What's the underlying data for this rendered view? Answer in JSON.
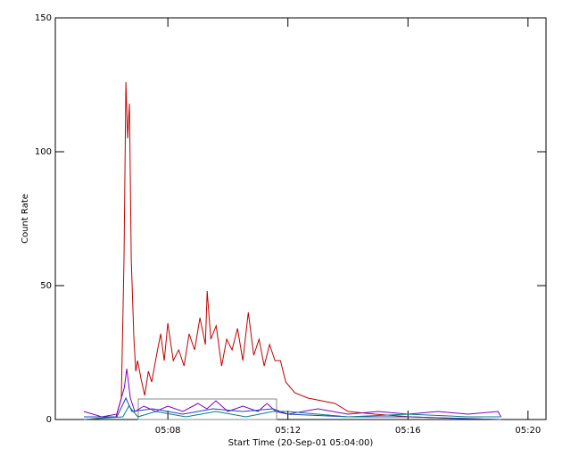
{
  "chart_data": {
    "type": "line",
    "xlabel": "Start Time (20-Sep-01 05:04:00)",
    "ylabel": "Count Rate",
    "xlim": [
      0.25,
      16.6
    ],
    "xticks": [
      {
        "value": 4,
        "label": "05:08"
      },
      {
        "value": 8,
        "label": "05:12"
      },
      {
        "value": 12,
        "label": "05:16"
      },
      {
        "value": 16,
        "label": "05:20"
      }
    ],
    "ylim": [
      0,
      150
    ],
    "yticks": [
      0,
      50,
      100,
      150
    ],
    "series": [
      {
        "color": "#c00000",
        "x": [
          1.2,
          2.27,
          2.45,
          2.54,
          2.6,
          2.66,
          2.72,
          2.78,
          2.87,
          2.93,
          2.99,
          3.11,
          3.23,
          3.35,
          3.46,
          3.64,
          3.76,
          3.88,
          4.0,
          4.18,
          4.36,
          4.54,
          4.71,
          4.89,
          5.07,
          5.25,
          5.31,
          5.43,
          5.61,
          5.79,
          5.96,
          6.14,
          6.32,
          6.5,
          6.68,
          6.86,
          7.04,
          7.21,
          7.39,
          7.57,
          7.75,
          7.93,
          8.23,
          8.67,
          9.12,
          9.57,
          10.01,
          10.9,
          12.1,
          13.3,
          15.07
        ],
        "values": [
          0,
          1,
          8,
          60,
          126,
          105,
          118,
          60,
          30,
          18,
          22,
          15,
          9,
          18,
          14,
          25,
          32,
          22,
          36,
          22,
          26,
          20,
          32,
          26,
          38,
          28,
          48,
          30,
          35,
          20,
          30,
          26,
          34,
          22,
          40,
          24,
          30,
          20,
          28,
          22,
          22,
          14,
          10,
          8,
          7,
          6,
          3,
          2,
          1,
          0.5,
          0
        ]
      },
      {
        "color": "#8000c0",
        "x": [
          1.2,
          1.8,
          2.3,
          2.55,
          2.63,
          2.75,
          2.9,
          3.2,
          3.6,
          4.0,
          4.5,
          5.0,
          5.3,
          5.6,
          6.0,
          6.5,
          7.0,
          7.3,
          7.6,
          8.0,
          9,
          10,
          11,
          12,
          13,
          14,
          15,
          15.1
        ],
        "values": [
          3,
          1,
          2,
          12,
          19,
          8,
          3,
          5,
          3,
          5,
          3,
          6,
          4,
          7,
          3,
          5,
          3,
          6,
          3,
          2,
          4,
          2,
          3,
          2,
          3,
          2,
          3,
          1
        ]
      },
      {
        "color": "#2040c0",
        "x": [
          1.2,
          2.3,
          2.6,
          2.8,
          3.5,
          4.5,
          5.5,
          6.5,
          7.5,
          8,
          10,
          12,
          15.1
        ],
        "values": [
          1,
          1,
          8,
          3,
          4,
          2,
          4,
          3,
          4,
          2,
          1,
          1,
          0
        ]
      },
      {
        "color": "#008080",
        "x": [
          1.2,
          2.5,
          2.7,
          3,
          3.6,
          4.6,
          5.6,
          6.6,
          7.5,
          8,
          9,
          10,
          12,
          14,
          15.1
        ],
        "values": [
          0,
          1,
          5,
          1,
          3,
          1,
          3,
          1,
          3,
          3,
          2,
          1,
          2,
          1,
          1
        ]
      }
    ]
  }
}
